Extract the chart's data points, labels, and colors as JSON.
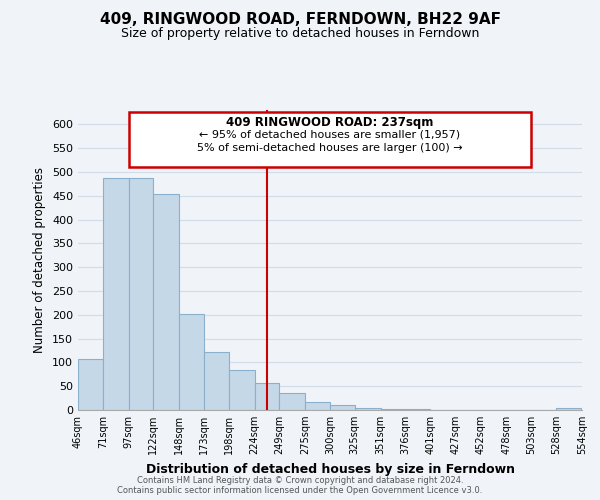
{
  "title": "409, RINGWOOD ROAD, FERNDOWN, BH22 9AF",
  "subtitle": "Size of property relative to detached houses in Ferndown",
  "xlabel": "Distribution of detached houses by size in Ferndown",
  "ylabel": "Number of detached properties",
  "footer_line1": "Contains HM Land Registry data © Crown copyright and database right 2024.",
  "footer_line2": "Contains public sector information licensed under the Open Government Licence v3.0.",
  "bin_edges": [
    46,
    71,
    97,
    122,
    148,
    173,
    198,
    224,
    249,
    275,
    300,
    325,
    351,
    376,
    401,
    427,
    452,
    478,
    503,
    528,
    554
  ],
  "bar_heights": [
    107,
    487,
    487,
    453,
    202,
    122,
    83,
    57,
    35,
    17,
    10,
    5,
    2,
    3,
    1,
    1,
    0,
    0,
    0,
    5
  ],
  "bar_color": "#c5d8e8",
  "bar_edge_color": "#8ab0cc",
  "grid_color": "#d0dce8",
  "vline_x": 237,
  "vline_color": "#cc0000",
  "ylim": [
    0,
    630
  ],
  "yticks": [
    0,
    50,
    100,
    150,
    200,
    250,
    300,
    350,
    400,
    450,
    500,
    550,
    600
  ],
  "annotation_text_line1": "409 RINGWOOD ROAD: 237sqm",
  "annotation_text_line2": "← 95% of detached houses are smaller (1,957)",
  "annotation_text_line3": "5% of semi-detached houses are larger (100) →",
  "background_color": "#f0f4f8"
}
